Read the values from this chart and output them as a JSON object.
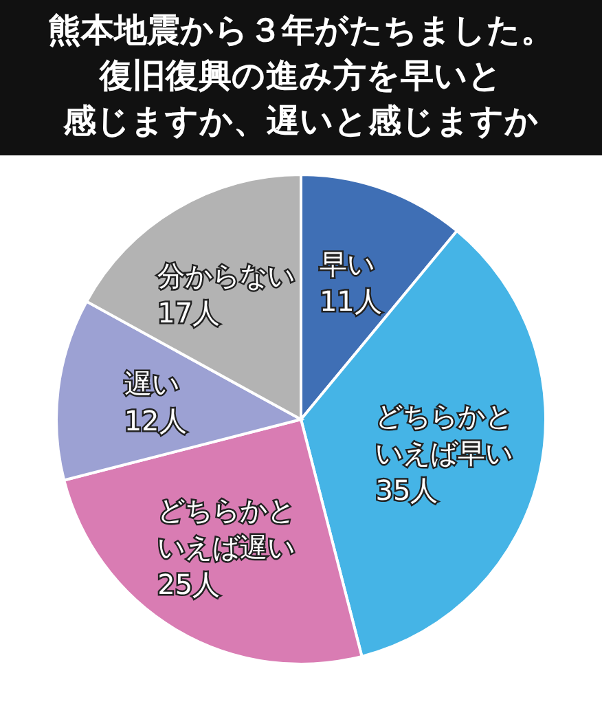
{
  "chart_data": {
    "type": "pie",
    "title": "熊本地震から３年がたちました。復旧復興の進み方を早いと感じますか、遅いと感じますか",
    "categories": [
      "早い",
      "どちらかといえば早い",
      "どちらかといえば遅い",
      "遅い",
      "分からない"
    ],
    "values": [
      11,
      35,
      25,
      12,
      17
    ],
    "colors": [
      "#3f6fb5",
      "#45b4e6",
      "#d97cb3",
      "#9ca1d3",
      "#b3b3b3"
    ],
    "value_labels": [
      "11人",
      "35人",
      "25人",
      "12人",
      "17人"
    ]
  }
}
